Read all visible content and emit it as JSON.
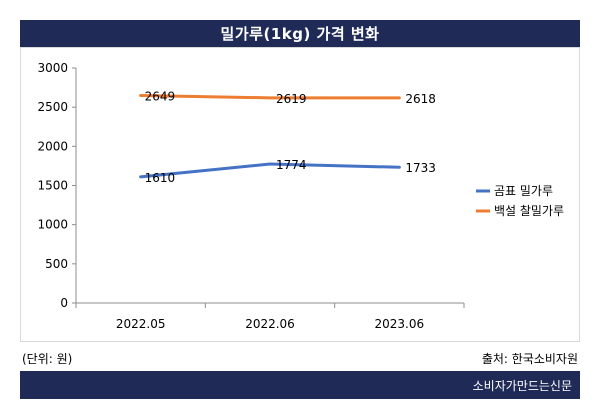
{
  "title": "밀가루(1kg) 가격 변화",
  "unit_note": "(단위: 원)",
  "source_note": "출처: 한국소비자원",
  "footer": "소비자가만드는신문",
  "colors": {
    "blue_series": "#4472c4",
    "orange_series": "#ed7d31",
    "bar": "#1f2a57"
  },
  "chart_data": {
    "type": "line",
    "title": "밀가루(1kg) 가격 변화",
    "categories": [
      "2022.05",
      "2022.06",
      "2023.06"
    ],
    "ylim": [
      0,
      3000
    ],
    "yticks": [
      "0",
      "500",
      "1000",
      "1500",
      "2000",
      "2500",
      "3000"
    ],
    "grid": false,
    "legend": "right",
    "series": [
      {
        "name": "곰표 밀가루",
        "values": [
          1610,
          1774,
          1733
        ],
        "color": "#4472c4"
      },
      {
        "name": "백설 찰밀가루",
        "values": [
          2649,
          2619,
          2618
        ],
        "color": "#ed7d31"
      }
    ]
  }
}
